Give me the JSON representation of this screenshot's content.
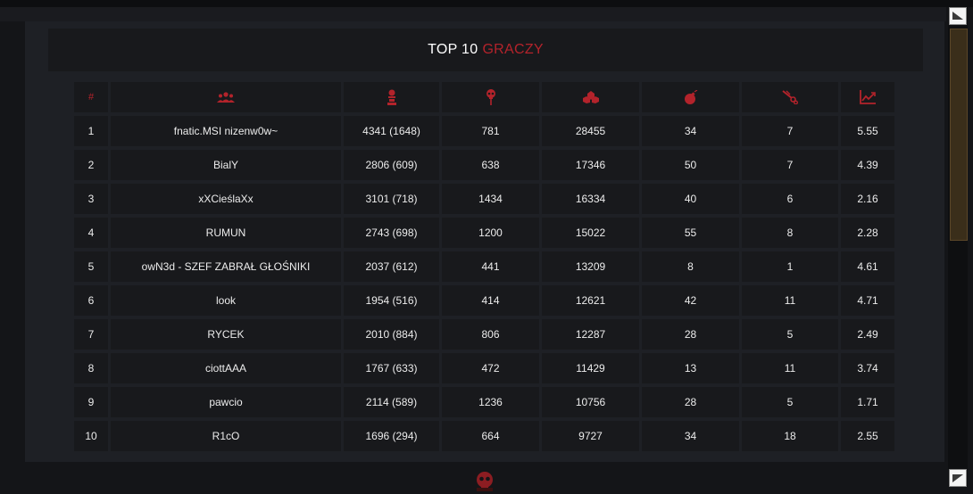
{
  "header": {
    "title_part1": "TOP 10",
    "title_part2": "GRACZY"
  },
  "columns": [
    {
      "label": "#",
      "icon": "hash"
    },
    {
      "label": "",
      "icon": "players-icon"
    },
    {
      "label": "",
      "icon": "kills-icon"
    },
    {
      "label": "",
      "icon": "deaths-icon"
    },
    {
      "label": "",
      "icon": "points-icon"
    },
    {
      "label": "",
      "icon": "bomb-icon"
    },
    {
      "label": "",
      "icon": "defuse-icon"
    },
    {
      "label": "",
      "icon": "ratio-icon"
    }
  ],
  "rows": [
    {
      "rank": "1",
      "name": "fnatic.MSI nizenw0w~",
      "kills": "4341 (1648)",
      "deaths": "781",
      "points": "28455",
      "bombs": "34",
      "defuses": "7",
      "ratio": "5.55"
    },
    {
      "rank": "2",
      "name": "BialY",
      "kills": "2806 (609)",
      "deaths": "638",
      "points": "17346",
      "bombs": "50",
      "defuses": "7",
      "ratio": "4.39"
    },
    {
      "rank": "3",
      "name": "xXCieślaXx",
      "kills": "3101 (718)",
      "deaths": "1434",
      "points": "16334",
      "bombs": "40",
      "defuses": "6",
      "ratio": "2.16"
    },
    {
      "rank": "4",
      "name": "RUMUN",
      "kills": "2743 (698)",
      "deaths": "1200",
      "points": "15022",
      "bombs": "55",
      "defuses": "8",
      "ratio": "2.28"
    },
    {
      "rank": "5",
      "name": "owN3d - SZEF ZABRAŁ GŁOŚNIKI",
      "kills": "2037 (612)",
      "deaths": "441",
      "points": "13209",
      "bombs": "8",
      "defuses": "1",
      "ratio": "4.61"
    },
    {
      "rank": "6",
      "name": "look",
      "kills": "1954 (516)",
      "deaths": "414",
      "points": "12621",
      "bombs": "42",
      "defuses": "11",
      "ratio": "4.71"
    },
    {
      "rank": "7",
      "name": "RYCEK",
      "kills": "2010 (884)",
      "deaths": "806",
      "points": "12287",
      "bombs": "28",
      "defuses": "5",
      "ratio": "2.49"
    },
    {
      "rank": "8",
      "name": "ciottAAA",
      "kills": "1767 (633)",
      "deaths": "472",
      "points": "11429",
      "bombs": "13",
      "defuses": "11",
      "ratio": "3.74"
    },
    {
      "rank": "9",
      "name": "pawcio",
      "kills": "2114 (589)",
      "deaths": "1236",
      "points": "10756",
      "bombs": "28",
      "defuses": "5",
      "ratio": "1.71"
    },
    {
      "rank": "10",
      "name": "R1cO",
      "kills": "1696 (294)",
      "deaths": "664",
      "points": "9727",
      "bombs": "34",
      "defuses": "18",
      "ratio": "2.55"
    }
  ],
  "colors": {
    "accent": "#b3232b",
    "panel": "#1e2025",
    "cell": "#18191c"
  }
}
